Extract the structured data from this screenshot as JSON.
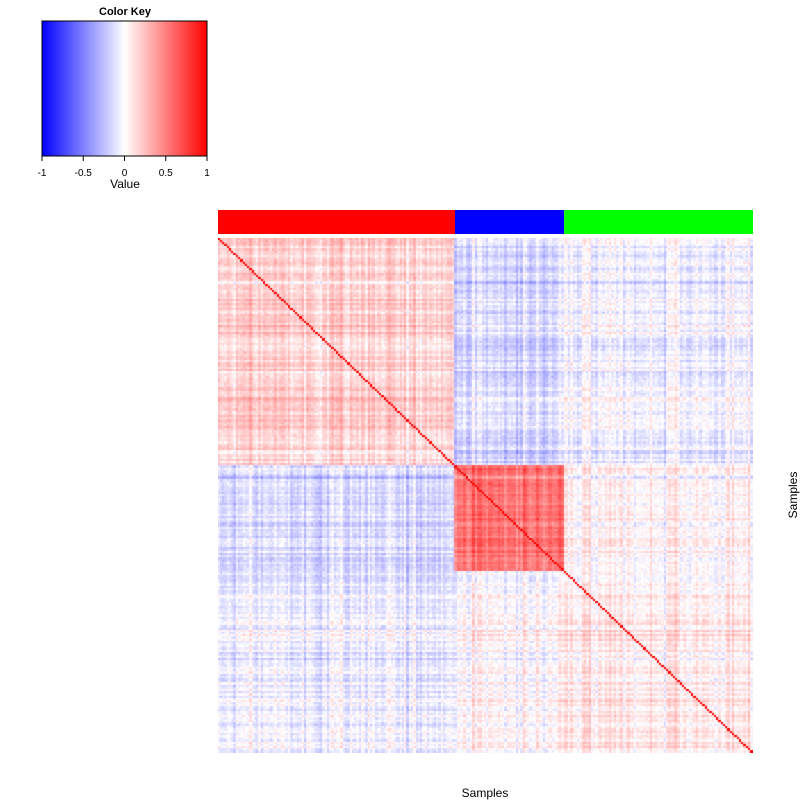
{
  "chart_data": {
    "type": "heatmap",
    "description_free": true,
    "xlabel": "Samples",
    "ylabel": "Samples",
    "color_key": {
      "title": "Color Key",
      "label": "Value",
      "range": [
        -1,
        1
      ],
      "ticks": [
        "-1",
        "-0.5",
        "0",
        "0.5",
        "1"
      ],
      "tick_values": [
        -1,
        -0.5,
        0,
        0.5,
        1
      ],
      "colors": {
        "low": "#0000ff",
        "mid": "#ffffff",
        "high": "#ff0000"
      }
    },
    "groups": [
      {
        "color": "#ff0000",
        "fraction": 0.443
      },
      {
        "color": "#0000ff",
        "fraction": 0.204
      },
      {
        "color": "#00ff00",
        "fraction": 0.353
      }
    ],
    "block_means": [
      [
        0.18,
        -0.15,
        -0.06
      ],
      [
        -0.15,
        0.55,
        0.03
      ],
      [
        -0.06,
        0.03,
        0.08
      ]
    ],
    "diagonal_value": 1,
    "grid": false
  }
}
